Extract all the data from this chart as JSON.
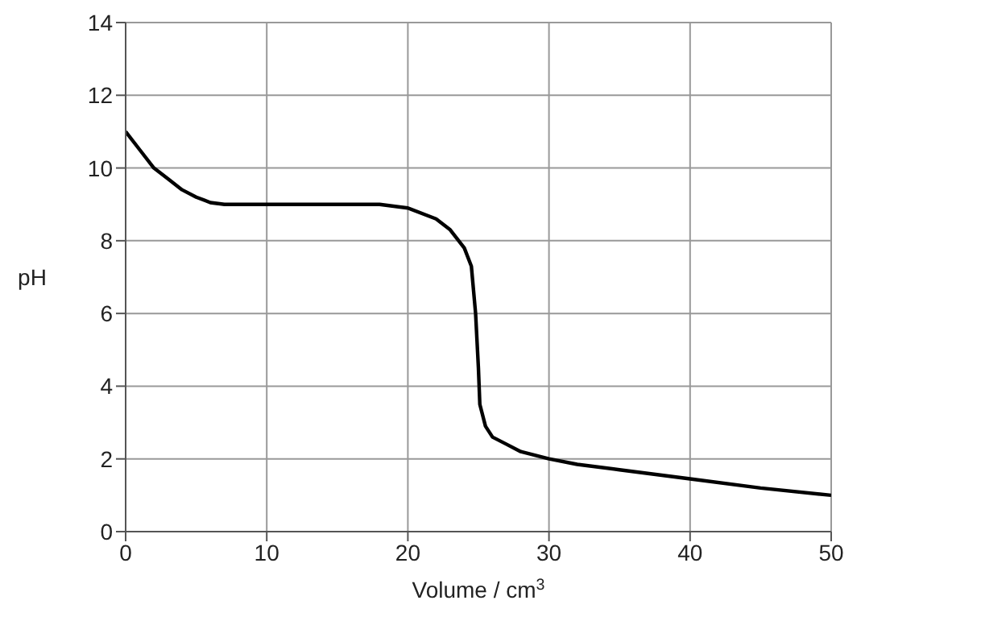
{
  "chart_data": {
    "type": "line",
    "xlabel": "Volume / cm$^{3}$",
    "ylabel": "pH",
    "x": [
      0,
      1,
      2,
      3,
      4,
      5,
      6,
      7,
      10,
      15,
      18,
      20,
      22,
      23,
      24,
      24.5,
      24.8,
      25,
      25.1,
      25.5,
      26,
      27,
      28,
      30,
      32,
      35,
      40,
      45,
      50
    ],
    "series": [
      {
        "color": "#000000",
        "values": [
          11,
          10.5,
          10,
          9.7,
          9.4,
          9.2,
          9.05,
          9,
          9,
          9,
          9,
          8.9,
          8.6,
          8.3,
          7.8,
          7.3,
          6,
          4.5,
          3.5,
          2.9,
          2.6,
          2.4,
          2.2,
          2.0,
          1.85,
          1.7,
          1.45,
          1.2,
          1.0
        ]
      }
    ],
    "xlim": [
      0,
      50
    ],
    "ylim": [
      0,
      14
    ],
    "xticks": [
      0,
      10,
      20,
      30,
      40,
      50
    ],
    "yticks": [
      0,
      2,
      4,
      6,
      8,
      10,
      12,
      14
    ],
    "grid": true,
    "legend": false,
    "marker": "none",
    "line_style": "solid"
  }
}
